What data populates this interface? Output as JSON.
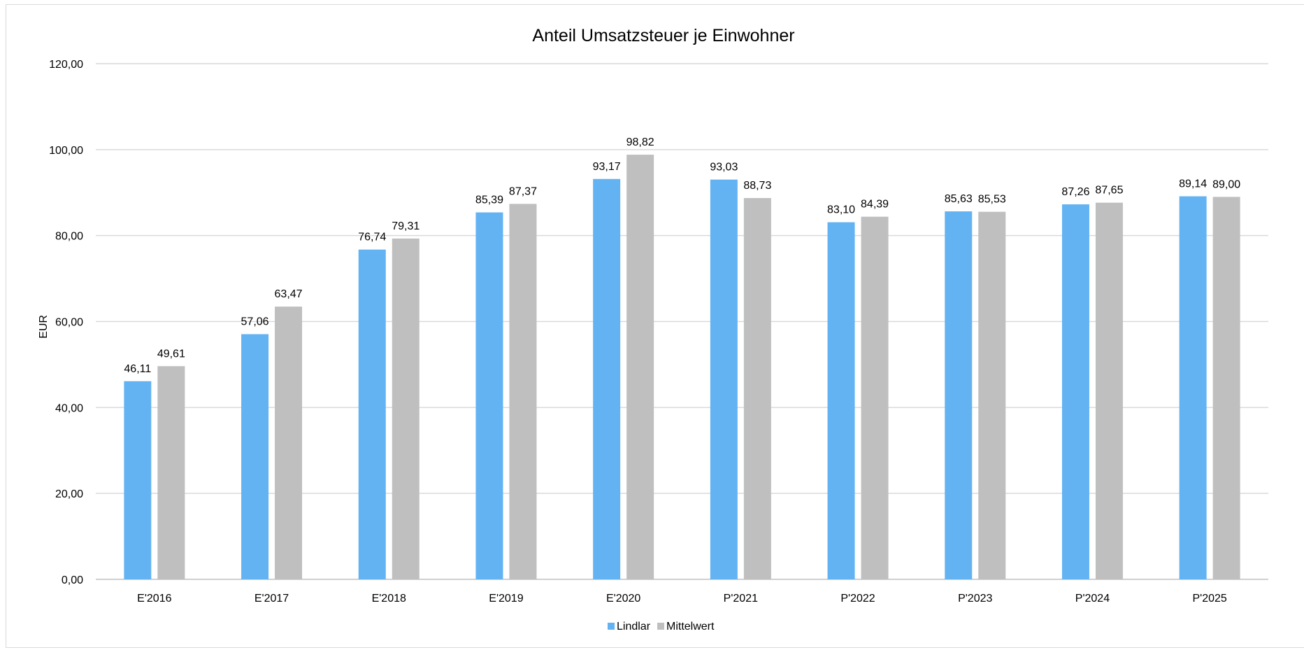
{
  "chart_data": {
    "type": "bar",
    "title": "Anteil Umsatzsteuer je Einwohner",
    "xlabel": "",
    "ylabel": "EUR",
    "ylim": [
      0,
      120
    ],
    "yticks": [
      "0,00",
      "20,00",
      "40,00",
      "60,00",
      "80,00",
      "100,00",
      "120,00"
    ],
    "ytick_values": [
      0,
      20,
      40,
      60,
      80,
      100,
      120
    ],
    "grid": true,
    "legend_position": "bottom",
    "categories": [
      "E'2016",
      "E'2017",
      "E'2018",
      "E'2019",
      "E'2020",
      "P'2021",
      "P'2022",
      "P'2023",
      "P'2024",
      "P'2025"
    ],
    "series": [
      {
        "name": "Lindlar",
        "color": "#63b3f3",
        "values": [
          46.11,
          57.06,
          76.74,
          85.39,
          93.17,
          93.03,
          83.1,
          85.63,
          87.26,
          89.14
        ],
        "labels": [
          "46,11",
          "57,06",
          "76,74",
          "85,39",
          "93,17",
          "93,03",
          "83,10",
          "85,63",
          "87,26",
          "89,14"
        ]
      },
      {
        "name": "Mittelwert",
        "color": "#bfbfbf",
        "values": [
          49.61,
          63.47,
          79.31,
          87.37,
          98.82,
          88.73,
          84.39,
          85.53,
          87.65,
          89.0
        ],
        "labels": [
          "49,61",
          "63,47",
          "79,31",
          "87,37",
          "98,82",
          "88,73",
          "84,39",
          "85,53",
          "87,65",
          "89,00"
        ]
      }
    ]
  }
}
